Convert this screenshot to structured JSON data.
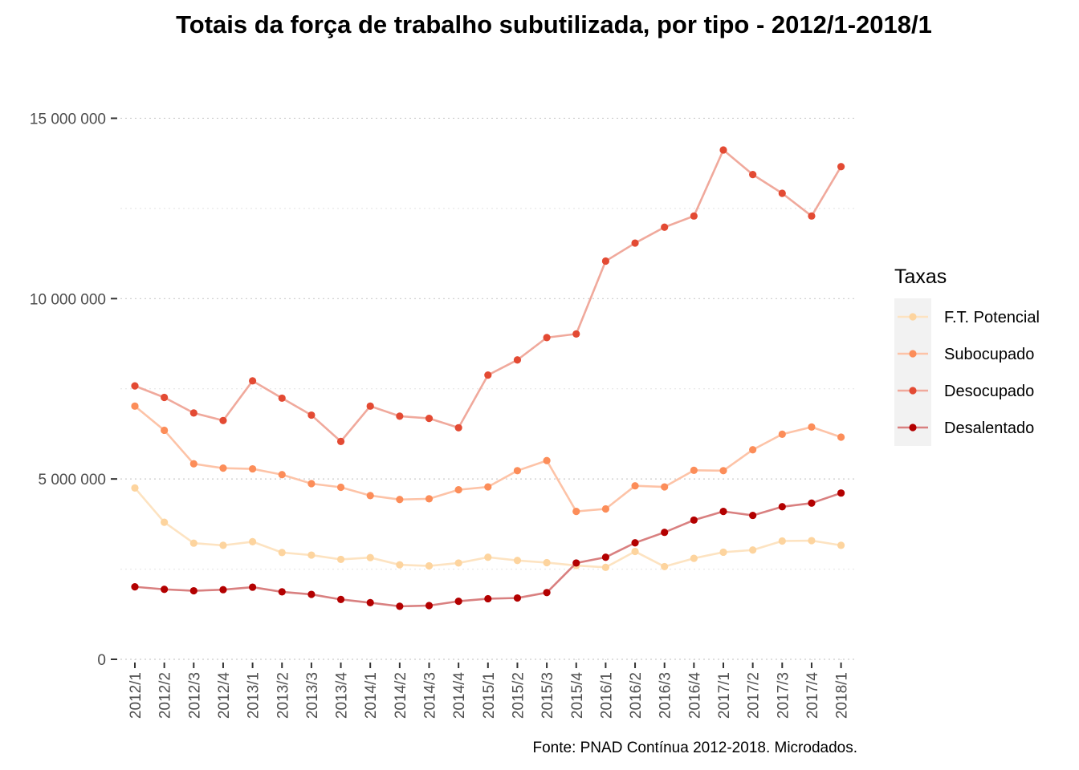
{
  "chart_data": {
    "type": "line",
    "title": "Totais da força de trabalho subutilizada, por tipo - 2012/1-2018/1",
    "caption": "Fonte: PNAD Contínua 2012-2018. Microdados.",
    "xlabel": "",
    "ylabel": "",
    "ylim": [
      0,
      16500000
    ],
    "y_ticks": [
      0,
      5000000,
      10000000,
      15000000
    ],
    "y_tick_labels": [
      "0",
      "5 000 000",
      "10 000 000",
      "15 000 000"
    ],
    "grid": true,
    "legend": {
      "title": "Taxas",
      "position": "right"
    },
    "categories": [
      "2012/1",
      "2012/2",
      "2012/3",
      "2012/4",
      "2013/1",
      "2013/2",
      "2013/3",
      "2013/4",
      "2014/1",
      "2014/2",
      "2014/3",
      "2014/4",
      "2015/1",
      "2015/2",
      "2015/3",
      "2015/4",
      "2016/1",
      "2016/2",
      "2016/3",
      "2016/4",
      "2017/1",
      "2017/2",
      "2017/3",
      "2017/4",
      "2018/1"
    ],
    "series": [
      {
        "name": "F.T. Potencial",
        "point_color": "#fdd49e",
        "line_color": "#fde3c1",
        "values": [
          4750000,
          3800000,
          3220000,
          3160000,
          3260000,
          2960000,
          2890000,
          2770000,
          2820000,
          2620000,
          2590000,
          2670000,
          2830000,
          2740000,
          2680000,
          2600000,
          2550000,
          2990000,
          2570000,
          2800000,
          2970000,
          3030000,
          3280000,
          3290000,
          3160000
        ]
      },
      {
        "name": "Subocupado",
        "point_color": "#fc8d59",
        "line_color": "#fdc3a7",
        "values": [
          7020000,
          6350000,
          5420000,
          5300000,
          5280000,
          5120000,
          4870000,
          4770000,
          4540000,
          4430000,
          4450000,
          4700000,
          4780000,
          5230000,
          5510000,
          4100000,
          4170000,
          4810000,
          4780000,
          5240000,
          5230000,
          5810000,
          6240000,
          6440000,
          6160000
        ]
      },
      {
        "name": "Desocupado",
        "point_color": "#e34a33",
        "line_color": "#f0a99c",
        "values": [
          7580000,
          7260000,
          6830000,
          6620000,
          7720000,
          7240000,
          6770000,
          6040000,
          7020000,
          6740000,
          6680000,
          6420000,
          7880000,
          8300000,
          8920000,
          9020000,
          11040000,
          11540000,
          11980000,
          12290000,
          14120000,
          13440000,
          12920000,
          12290000,
          13660000
        ]
      },
      {
        "name": "Desalentado",
        "point_color": "#b30000",
        "line_color": "#d98080",
        "values": [
          2010000,
          1940000,
          1900000,
          1930000,
          2000000,
          1870000,
          1800000,
          1660000,
          1570000,
          1470000,
          1490000,
          1610000,
          1680000,
          1700000,
          1850000,
          2670000,
          2830000,
          3230000,
          3520000,
          3860000,
          4100000,
          3990000,
          4230000,
          4330000,
          4610000
        ]
      }
    ]
  }
}
